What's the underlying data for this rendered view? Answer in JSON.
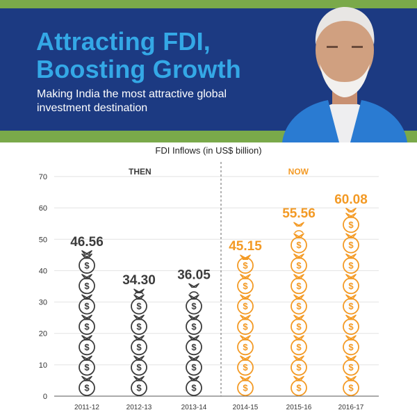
{
  "header": {
    "title_line1": "Attracting FDI,",
    "title_line2": "Boosting Growth",
    "subtitle": "Making India the most attractive global investment destination"
  },
  "colors": {
    "banner_blue": "#1c3a82",
    "banner_green": "#7aa94a",
    "title_blue": "#34a8e6",
    "then_color": "#3c3c3c",
    "now_color": "#f39a25"
  },
  "chart_data": {
    "type": "bar",
    "title": "FDI Inflows (in US$ billion)",
    "categories": [
      "2011-12",
      "2012-13",
      "2013-14",
      "2014-15",
      "2015-16",
      "2016-17"
    ],
    "values": [
      46.56,
      34.3,
      36.05,
      45.15,
      55.56,
      60.08
    ],
    "value_labels": [
      "46.56",
      "34.30",
      "36.05",
      "45.15",
      "55.56",
      "60.08"
    ],
    "groups": [
      {
        "name": "THEN",
        "categories": [
          "2011-12",
          "2012-13",
          "2013-14"
        ],
        "color": "#3c3c3c"
      },
      {
        "name": "NOW",
        "categories": [
          "2014-15",
          "2015-16",
          "2016-17"
        ],
        "color": "#f39a25"
      }
    ],
    "ylim": [
      0,
      70
    ],
    "yticks": [
      0,
      10,
      20,
      30,
      40,
      50,
      60,
      70
    ],
    "grid": true,
    "mark": "stacked money-bag icons",
    "bag_icon": "money-bag-icon",
    "bag_symbol": "$"
  }
}
